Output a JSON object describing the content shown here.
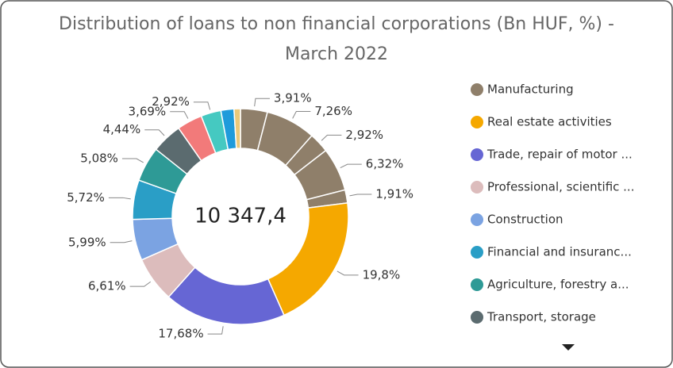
{
  "chart_data": {
    "type": "donut",
    "title": [
      "Distribution of loans to non financial corporations (Bn HUF, %) -",
      "March 2022"
    ],
    "center_label": "10 347,4",
    "values": [
      3.91,
      7.26,
      2.92,
      6.32,
      1.91,
      19.8,
      17.68,
      6.61,
      5.99,
      5.72,
      5.08,
      4.44,
      3.69,
      2.92,
      1.9,
      0.93
    ],
    "value_labels": [
      "3,91%",
      "7,26%",
      "2,92%",
      "6,32%",
      "1,91%",
      "19,8%",
      "17,68%",
      "6,61%",
      "5,99%",
      "5,72%",
      "5,08%",
      "4,44%",
      "3,69%",
      "2,92%",
      null,
      null
    ],
    "colors": [
      "#8f7f6a",
      "#8f7f6a",
      "#8f7f6a",
      "#8f7f6a",
      "#8f7f6a",
      "#f5a800",
      "#6666d4",
      "#dcbcbc",
      "#7ba3e2",
      "#2a9ec6",
      "#2e9a96",
      "#5b6b6f",
      "#f27a7a",
      "#45c9c1",
      "#1f9bdb",
      "#ebc97a"
    ],
    "legend": [
      {
        "name": "Manufacturing",
        "color": "#8f7f6a"
      },
      {
        "name": "Real estate activities",
        "color": "#f5a800"
      },
      {
        "name": "Trade, repair of motor ...",
        "color": "#6666d4"
      },
      {
        "name": "Professional, scientific ...",
        "color": "#dcbcbc"
      },
      {
        "name": "Construction",
        "color": "#7ba3e2"
      },
      {
        "name": "Financial and insuranc...",
        "color": "#2a9ec6"
      },
      {
        "name": "Agriculture, forestry a...",
        "color": "#2e9a96"
      },
      {
        "name": "Transport, storage",
        "color": "#5b6b6f"
      }
    ]
  }
}
